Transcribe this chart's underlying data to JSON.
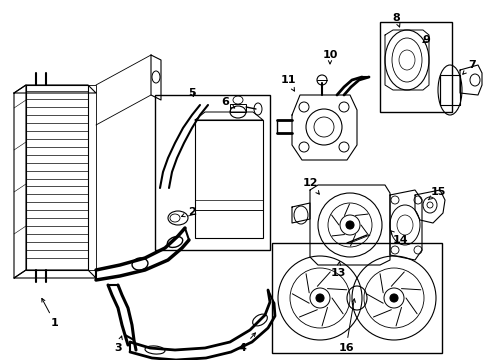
{
  "background_color": "#ffffff",
  "line_color": "#000000",
  "fig_width": 4.9,
  "fig_height": 3.6,
  "dpi": 100,
  "font_size": 8,
  "label_fontsize": 8
}
